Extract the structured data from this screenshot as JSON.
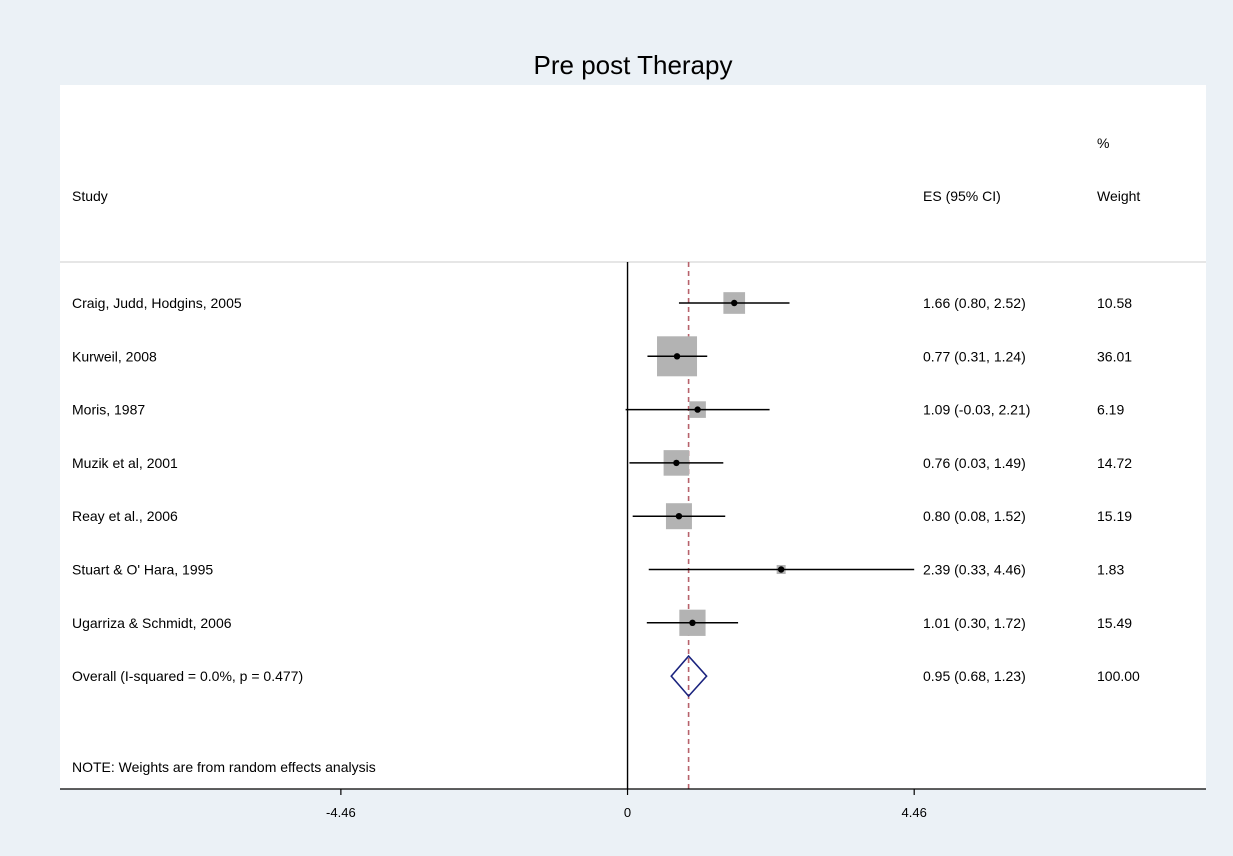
{
  "chart_data": {
    "type": "forest",
    "title": "Pre post Therapy",
    "columns": {
      "study": "Study",
      "es": "ES (95% CI)",
      "weight_line1": "%",
      "weight_line2": "Weight"
    },
    "x_axis": {
      "ticks": [
        -4.46,
        0,
        4.46
      ],
      "tick_labels": [
        "-4.46",
        "0",
        "4.46"
      ],
      "range": [
        -8.83,
        9.0
      ],
      "null_line": 0
    },
    "studies": [
      {
        "label": "Craig, Judd, Hodgins, 2005",
        "es": 1.66,
        "lo": 0.8,
        "hi": 2.52,
        "es_text": "1.66 (0.80, 2.52)",
        "weight": 10.58,
        "weight_text": "10.58"
      },
      {
        "label": "Kurweil, 2008",
        "es": 0.77,
        "lo": 0.31,
        "hi": 1.24,
        "es_text": "0.77 (0.31, 1.24)",
        "weight": 36.01,
        "weight_text": "36.01"
      },
      {
        "label": "Moris, 1987",
        "es": 1.09,
        "lo": -0.03,
        "hi": 2.21,
        "es_text": "1.09 (-0.03, 2.21)",
        "weight": 6.19,
        "weight_text": "6.19"
      },
      {
        "label": "Muzik et al, 2001",
        "es": 0.76,
        "lo": 0.03,
        "hi": 1.49,
        "es_text": "0.76 (0.03, 1.49)",
        "weight": 14.72,
        "weight_text": "14.72"
      },
      {
        "label": "Reay et al., 2006",
        "es": 0.8,
        "lo": 0.08,
        "hi": 1.52,
        "es_text": "0.80 (0.08, 1.52)",
        "weight": 15.19,
        "weight_text": "15.19"
      },
      {
        "label": "Stuart & O' Hara, 1995",
        "es": 2.39,
        "lo": 0.33,
        "hi": 4.46,
        "es_text": "2.39 (0.33, 4.46)",
        "weight": 1.83,
        "weight_text": "1.83"
      },
      {
        "label": "Ugarriza & Schmidt, 2006",
        "es": 1.01,
        "lo": 0.3,
        "hi": 1.72,
        "es_text": "1.01 (0.30, 1.72)",
        "weight": 15.49,
        "weight_text": "15.49"
      }
    ],
    "overall": {
      "label": "Overall  (I-squared = 0.0%, p = 0.477)",
      "es": 0.95,
      "lo": 0.68,
      "hi": 1.23,
      "es_text": "0.95 (0.68, 1.23)",
      "weight_text": "100.00"
    },
    "note": "NOTE: Weights are from random effects analysis",
    "colors": {
      "background": "#ebf1f6",
      "plot_area": "#ffffff",
      "weight_box": "#b3b3b3",
      "diamond": "#1a237e",
      "pooled_line": "#b8626b",
      "ink": "#000000"
    }
  }
}
